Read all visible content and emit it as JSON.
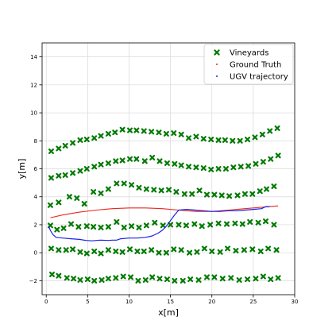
{
  "chart_data": {
    "type": "scatter",
    "xlabel": "x[m]",
    "ylabel": "y[m]",
    "xlim": [
      -0.5,
      30
    ],
    "ylim": [
      -3,
      15
    ],
    "xticks": [
      0,
      5,
      10,
      15,
      20,
      25,
      30
    ],
    "yticks": [
      -2,
      0,
      2,
      4,
      6,
      8,
      10,
      12,
      14
    ],
    "grid": true,
    "legend_position": "top-right",
    "legend": [
      {
        "label": "Vineyards",
        "marker": "x-cross",
        "color": "#007a00"
      },
      {
        "label": "Ground Truth",
        "marker": "dot",
        "color": "#e8271c"
      },
      {
        "label": "UGV trajectory",
        "marker": "dot",
        "color": "#1a20e6"
      }
    ],
    "colors": {
      "vineyards": "#007a00",
      "ground_truth": "#e8271c",
      "ugv_trajectory": "#1a20e6",
      "grid": "#d9d9d9"
    },
    "vineyard_rows": [
      {
        "x": [
          0.7,
          1.5,
          2.5,
          3.3,
          4.1,
          5.0,
          5.8,
          6.7,
          7.5,
          8.4,
          9.3,
          10.2,
          11.1,
          12.0,
          12.8,
          13.7,
          14.6,
          15.5,
          16.5,
          17.4,
          18.4,
          19.4,
          20.3,
          21.3,
          22.3,
          23.3,
          24.3,
          25.3,
          26.2,
          27.1,
          28.0
        ],
        "y": [
          -1.55,
          -1.65,
          -1.8,
          -1.85,
          -1.95,
          -1.9,
          -2.0,
          -1.95,
          -1.85,
          -1.8,
          -1.7,
          -1.75,
          -2.0,
          -1.95,
          -1.75,
          -1.85,
          -1.9,
          -2.0,
          -2.0,
          -1.9,
          -1.95,
          -1.75,
          -1.75,
          -1.85,
          -1.8,
          -1.95,
          -1.9,
          -1.85,
          -1.7,
          -1.9,
          -1.8
        ]
      },
      {
        "x": [
          0.6,
          1.5,
          2.4,
          3.2,
          4.1,
          4.9,
          5.8,
          6.6,
          7.5,
          8.4,
          9.2,
          10.1,
          11.0,
          11.8,
          12.7,
          13.6,
          14.5,
          15.4,
          16.3,
          17.3,
          18.2,
          19.1,
          20.0,
          21.0,
          21.9,
          22.9,
          23.9,
          24.9,
          25.9,
          26.8,
          27.8
        ],
        "y": [
          0.3,
          0.2,
          0.2,
          0.25,
          0.05,
          -0.05,
          0.1,
          -0.05,
          0.2,
          0.1,
          0.05,
          0.25,
          0.1,
          0.1,
          0.2,
          0.0,
          0.0,
          0.25,
          0.2,
          0.0,
          0.05,
          0.3,
          0.1,
          0.05,
          0.3,
          0.15,
          0.2,
          0.25,
          0.1,
          0.3,
          0.2
        ]
      },
      {
        "x": [
          0.5,
          1.3,
          2.1,
          3.0,
          3.9,
          4.9,
          5.7,
          6.6,
          7.5,
          8.5,
          9.4,
          10.3,
          11.2,
          12.1,
          13.1,
          14.1,
          15.0,
          16.0,
          16.9,
          17.9,
          18.8,
          19.8,
          20.8,
          21.8,
          22.8,
          23.7,
          24.6,
          25.6,
          26.5,
          27.5
        ],
        "y": [
          1.95,
          1.65,
          1.75,
          2.05,
          1.85,
          1.9,
          1.85,
          1.8,
          1.85,
          2.2,
          1.8,
          1.9,
          1.8,
          1.95,
          2.15,
          1.95,
          2.0,
          2.0,
          1.95,
          2.05,
          1.9,
          2.0,
          2.1,
          2.05,
          2.1,
          2.05,
          2.2,
          2.15,
          2.25,
          2.0
        ]
      },
      {
        "x": [
          0.5,
          1.5,
          2.8,
          3.7,
          4.6,
          5.7,
          6.6,
          7.5,
          8.5,
          9.4,
          10.3,
          11.2,
          12.1,
          13.0,
          13.9,
          14.8,
          15.7,
          16.7,
          17.6,
          18.5,
          19.4,
          20.3,
          21.2,
          22.1,
          23.1,
          24.0,
          24.9,
          25.8,
          26.6,
          27.5
        ],
        "y": [
          3.4,
          3.6,
          4.0,
          3.9,
          3.5,
          4.35,
          4.25,
          4.55,
          4.95,
          4.95,
          4.85,
          4.65,
          4.55,
          4.5,
          4.45,
          4.5,
          4.35,
          4.2,
          4.2,
          4.45,
          4.15,
          4.15,
          4.1,
          4.05,
          4.1,
          4.2,
          4.2,
          4.4,
          4.55,
          4.75
        ]
      },
      {
        "x": [
          0.6,
          1.5,
          2.3,
          3.2,
          4.1,
          4.9,
          5.8,
          6.6,
          7.5,
          8.4,
          9.2,
          10.1,
          10.9,
          11.9,
          12.8,
          13.7,
          14.6,
          15.5,
          16.3,
          17.2,
          18.1,
          19.0,
          19.9,
          20.8,
          21.7,
          22.6,
          23.5,
          24.4,
          25.3,
          26.2,
          27.1,
          28.0
        ],
        "y": [
          5.35,
          5.5,
          5.55,
          5.7,
          5.85,
          6.0,
          6.15,
          6.3,
          6.4,
          6.55,
          6.6,
          6.7,
          6.7,
          6.55,
          6.8,
          6.55,
          6.4,
          6.35,
          6.25,
          6.15,
          6.1,
          6.05,
          5.95,
          6.0,
          6.0,
          6.1,
          6.15,
          6.2,
          6.35,
          6.5,
          6.7,
          6.95
        ]
      },
      {
        "x": [
          0.6,
          1.5,
          2.3,
          3.2,
          4.1,
          4.9,
          5.8,
          6.6,
          7.5,
          8.3,
          9.2,
          10.1,
          10.9,
          11.8,
          12.7,
          13.6,
          14.5,
          15.4,
          16.3,
          17.2,
          18.1,
          19.0,
          19.9,
          20.8,
          21.6,
          22.5,
          23.4,
          24.3,
          25.2,
          26.1,
          27.0,
          27.9
        ],
        "y": [
          7.25,
          7.45,
          7.65,
          7.85,
          8.05,
          8.1,
          8.2,
          8.35,
          8.5,
          8.6,
          8.8,
          8.75,
          8.75,
          8.7,
          8.65,
          8.6,
          8.5,
          8.55,
          8.45,
          8.2,
          8.3,
          8.15,
          8.1,
          8.05,
          8.05,
          8.0,
          8.0,
          8.1,
          8.25,
          8.45,
          8.7,
          8.9
        ]
      }
    ],
    "ground_truth": {
      "x": [
        0.5,
        2,
        4,
        6,
        8,
        10,
        12,
        14,
        16,
        18,
        20,
        22,
        24,
        26,
        28
      ],
      "y": [
        2.5,
        2.7,
        2.9,
        3.05,
        3.15,
        3.2,
        3.2,
        3.15,
        3.05,
        2.95,
        2.95,
        3.05,
        3.15,
        3.25,
        3.35
      ]
    },
    "ugv_trajectory": {
      "x": [
        0.3,
        0.5,
        0.8,
        1.2,
        2.0,
        3.0,
        4.0,
        4.8,
        5.5,
        6.5,
        7.5,
        8.0,
        8.5,
        9.0,
        10.0,
        11.0,
        12.0,
        12.8,
        13.5,
        14.0,
        14.5,
        15.0,
        15.5,
        16.0,
        17.0,
        18.0,
        19.0,
        20.0,
        21.0,
        22.0,
        23.0,
        24.0,
        25.0,
        26.0,
        26.5,
        27.0
      ],
      "y": [
        1.9,
        1.6,
        1.3,
        1.1,
        1.05,
        1.0,
        0.95,
        0.88,
        0.85,
        0.9,
        0.88,
        0.9,
        0.9,
        1.0,
        1.05,
        1.05,
        1.1,
        1.2,
        1.4,
        1.6,
        1.9,
        2.3,
        2.7,
        3.05,
        3.1,
        3.05,
        3.0,
        2.95,
        2.95,
        3.0,
        3.0,
        3.05,
        3.1,
        3.15,
        3.3,
        3.3
      ]
    }
  }
}
